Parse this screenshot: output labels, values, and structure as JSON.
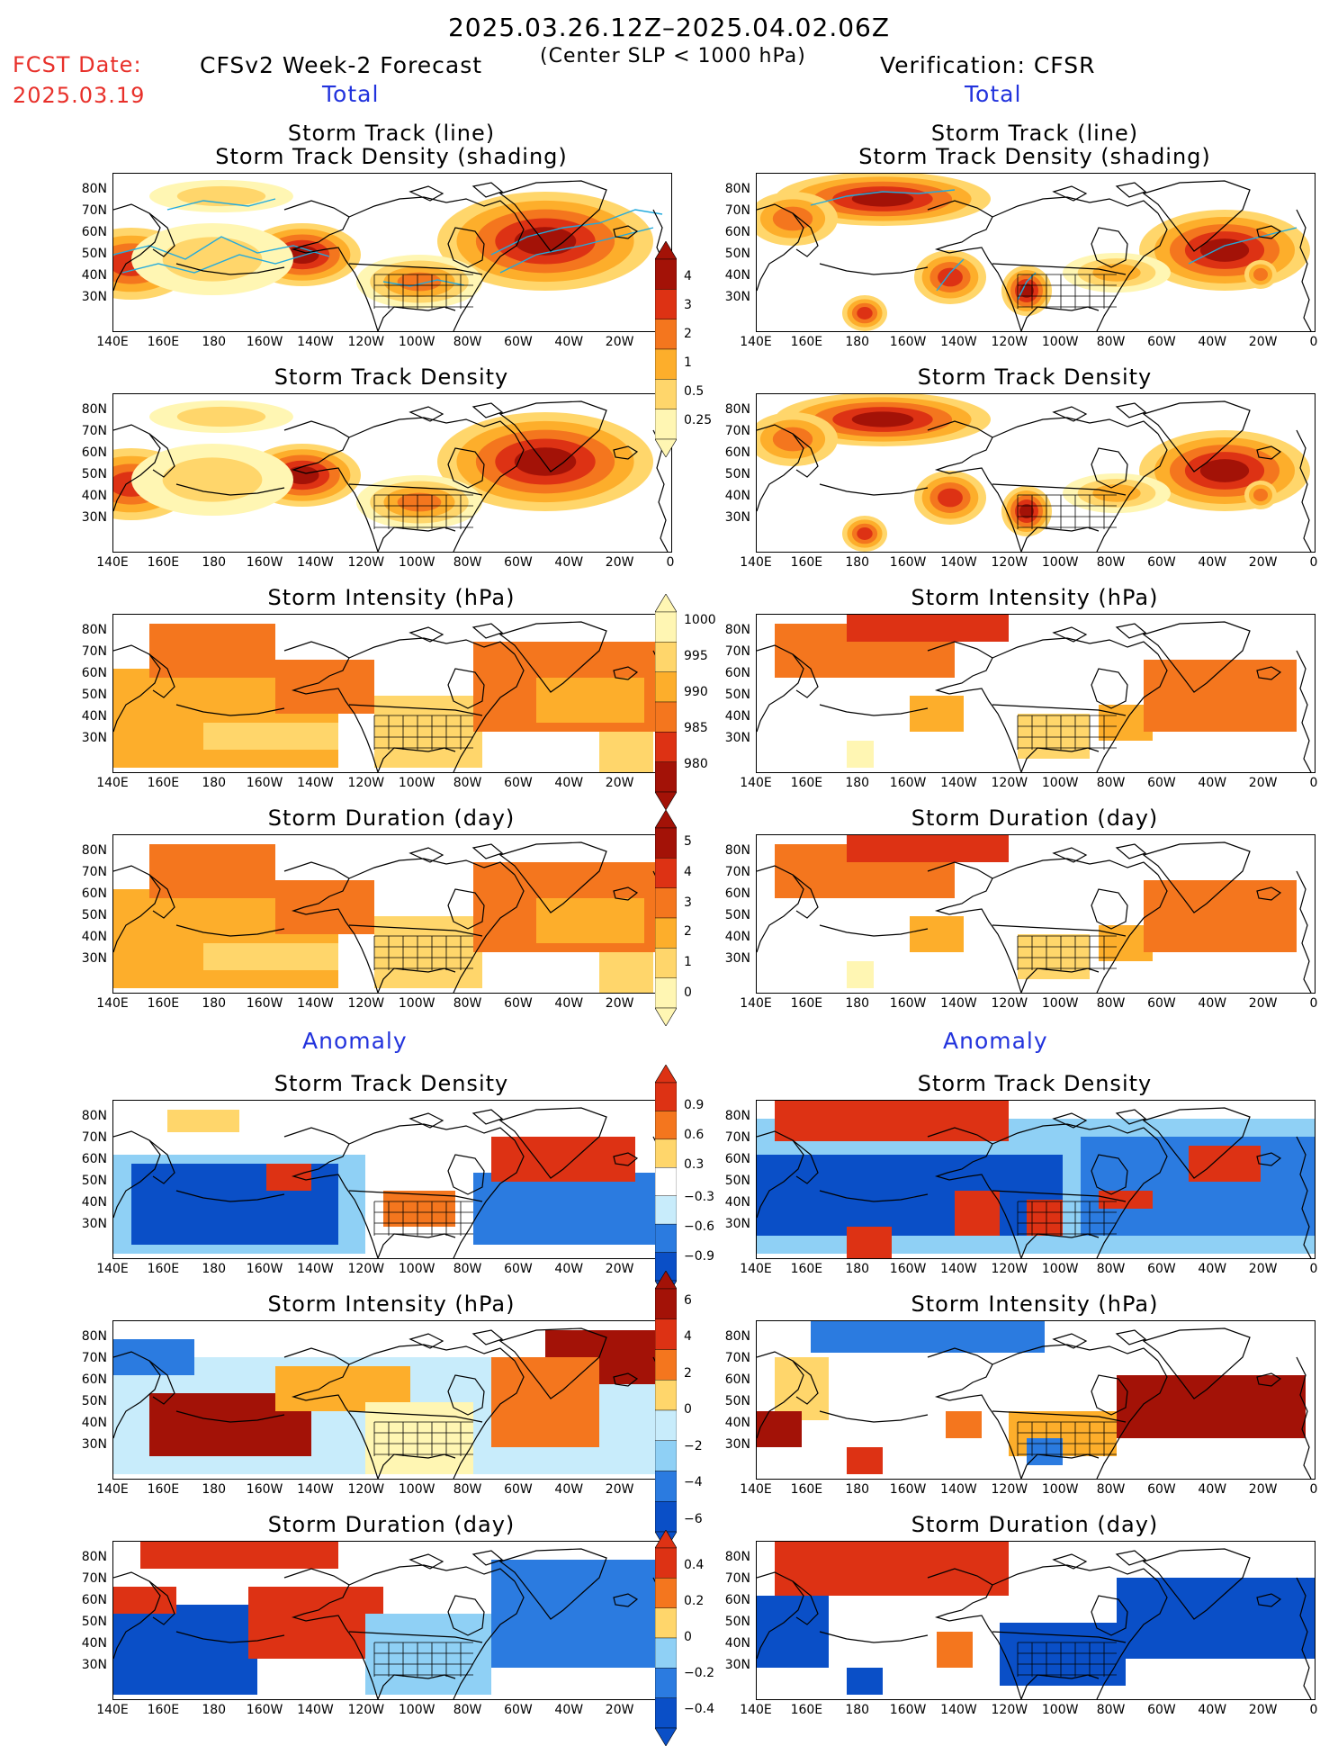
{
  "header": {
    "main_title": "2025.03.26.12Z–2025.04.02.06Z",
    "subtitle": "(Center SLP < 1000 hPa)",
    "fcst_label": "FCST Date:",
    "fcst_date": "2025.03.19",
    "left_title": "CFSv2 Week-2 Forecast",
    "right_title": "Verification: CFSR"
  },
  "sections": {
    "total": "Total",
    "anomaly": "Anomaly"
  },
  "panels": {
    "track": "Storm Track (line)",
    "track_sub": "Storm Track Density (shading)",
    "density": "Storm Track Density",
    "intensity": "Storm Intensity (hPa)",
    "duration": "Storm Duration (day)"
  },
  "axes": {
    "lat": [
      "80N",
      "70N",
      "60N",
      "50N",
      "40N",
      "30N"
    ],
    "lon": [
      "140E",
      "160E",
      "180",
      "160W",
      "140W",
      "120W",
      "100W",
      "80W",
      "60W",
      "40W",
      "20W",
      "0"
    ]
  },
  "colorbars": {
    "density": [
      "4",
      "3",
      "2",
      "1",
      "0.5",
      "0.25"
    ],
    "intensity": [
      "1000",
      "995",
      "990",
      "985",
      "980"
    ],
    "duration": [
      "5",
      "4",
      "3",
      "2",
      "1",
      "0"
    ],
    "density_anom": [
      "0.9",
      "0.6",
      "0.3",
      "−0.3",
      "−0.6",
      "−0.9"
    ],
    "intensity_anom": [
      "6",
      "4",
      "2",
      "0",
      "−2",
      "−4",
      "−6"
    ],
    "duration_anom": [
      "0.4",
      "0.2",
      "0",
      "−0.2",
      "−0.4"
    ]
  },
  "colors": {
    "warm": [
      "#fff6b3",
      "#ffd66b",
      "#fdae2b",
      "#f4761e",
      "#dd3214",
      "#a31207"
    ],
    "cool": [
      "#0a4fc7",
      "#2b7be0",
      "#8fd0f5",
      "#c8ecfb"
    ],
    "blue_text": "#2233dd",
    "red_text": "#e8302a"
  }
}
